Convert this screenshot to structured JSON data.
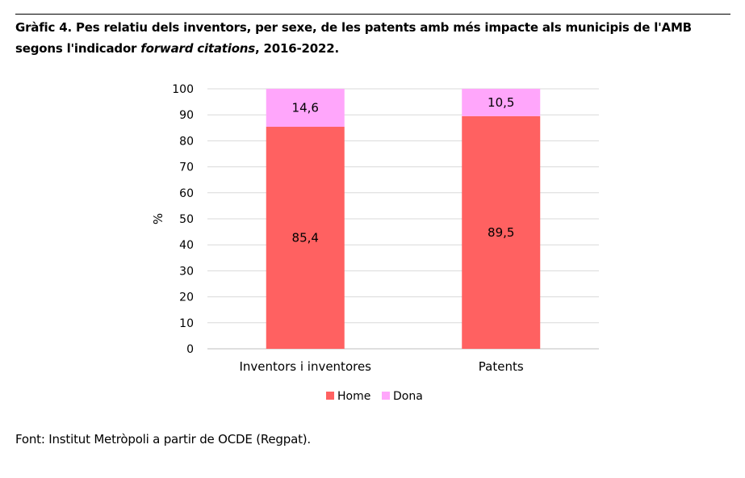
{
  "title": {
    "part1": "Gràfic 4. Pes relatiu dels inventors, per sexe, de les patents amb més impacte als municipis de l'AMB segons l'indicador ",
    "italic": "forward citations",
    "part2": ", 2016-2022."
  },
  "source": "Font: Institut Metròpoli a partir de OCDE (Regpat).",
  "chart_data": {
    "type": "bar",
    "stacked": true,
    "categories": [
      "Inventors i inventores",
      "Patents"
    ],
    "series": [
      {
        "name": "Home",
        "values": [
          85.4,
          89.5
        ],
        "labels": [
          "85,4",
          "89,5"
        ],
        "color": "#ff6161"
      },
      {
        "name": "Dona",
        "values": [
          14.6,
          10.5
        ],
        "labels": [
          "14,6",
          "10,5"
        ],
        "color": "#ffa6fb"
      }
    ],
    "ylabel": "%",
    "ylim": [
      0,
      100
    ],
    "yticks": [
      0,
      10,
      20,
      30,
      40,
      50,
      60,
      70,
      80,
      90,
      100
    ],
    "grid": true,
    "gridColor": "#d9d9d9",
    "legend": "bottom-center"
  }
}
